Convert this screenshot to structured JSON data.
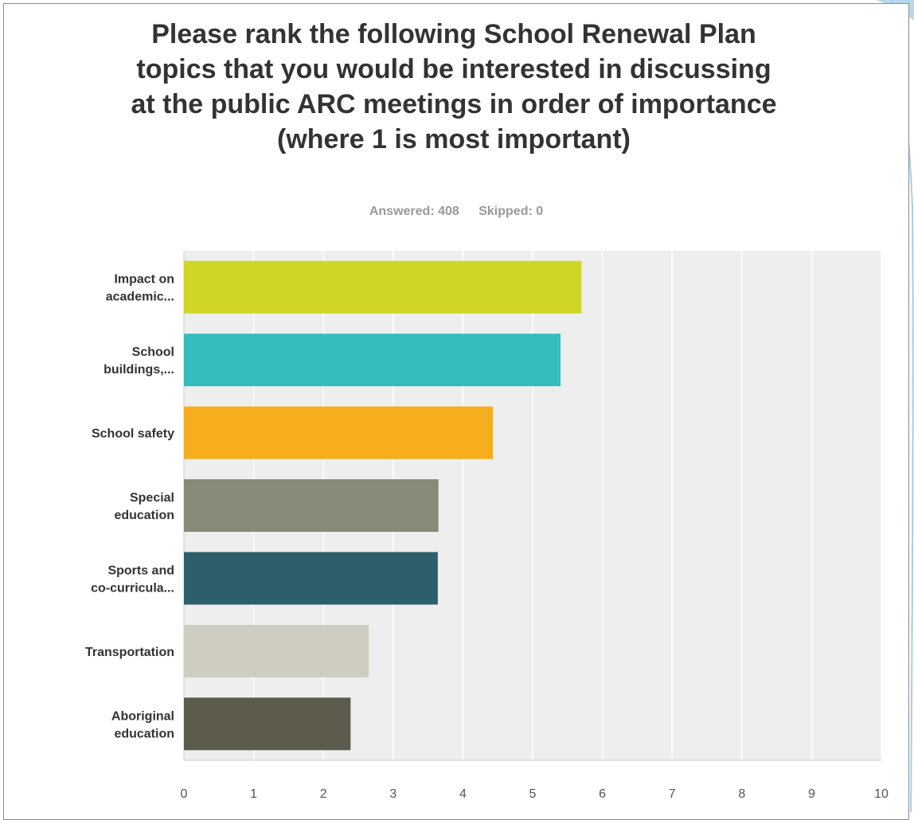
{
  "chart_data": {
    "type": "bar",
    "orientation": "horizontal",
    "title": "Please rank the following School Renewal Plan topics that you would be interested in discussing at the public ARC meetings in order of importance (where 1 is most important)",
    "answered_label": "Answered: 408",
    "skipped_label": "Skipped: 0",
    "categories": [
      [
        "Impact on",
        "academic..."
      ],
      [
        "School",
        "buildings,..."
      ],
      [
        "School safety"
      ],
      [
        "Special",
        "education"
      ],
      [
        "Sports and",
        "co-curricula..."
      ],
      [
        "Transportation"
      ],
      [
        "Aboriginal",
        "education"
      ]
    ],
    "values": [
      5.7,
      5.4,
      4.43,
      3.65,
      3.64,
      2.65,
      2.39
    ],
    "colors": [
      "#cfd626",
      "#33bdbf",
      "#f6ae1f",
      "#898977",
      "#2d5f6b",
      "#cfcdbf",
      "#5d5b4b"
    ],
    "xlim": [
      0,
      10
    ],
    "xticks": [
      "0",
      "1",
      "2",
      "3",
      "4",
      "5",
      "6",
      "7",
      "8",
      "9",
      "10"
    ],
    "grid": true,
    "xlabel": "",
    "ylabel": ""
  }
}
